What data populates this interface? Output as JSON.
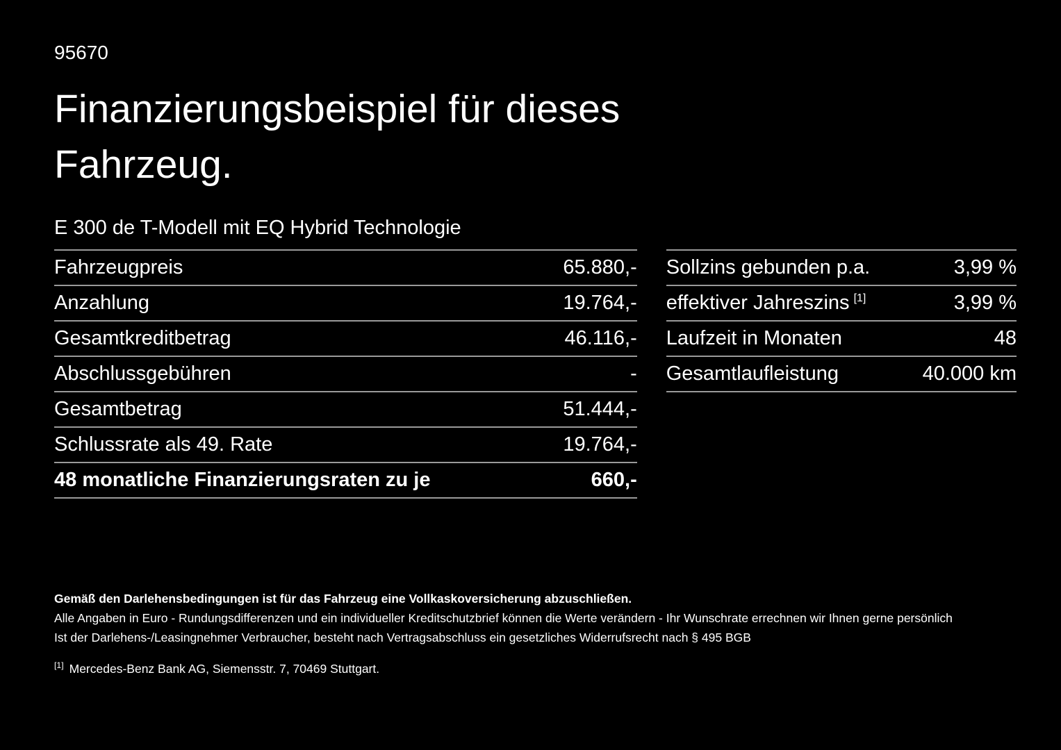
{
  "page": {
    "id_number": "95670",
    "title": "Finanzierungsbeispiel für dieses Fahrzeug.",
    "subtitle": "E 300 de T-Modell mit EQ Hybrid Technologie"
  },
  "tables": {
    "left": {
      "rows": [
        {
          "label": "Fahrzeugpreis",
          "value": "65.880,-"
        },
        {
          "label": "Anzahlung",
          "value": "19.764,-"
        },
        {
          "label": "Gesamtkreditbetrag",
          "value": "46.116,-"
        },
        {
          "label": "Abschlussgebühren",
          "value": "-"
        },
        {
          "label": "Gesamtbetrag",
          "value": "51.444,-"
        },
        {
          "label": "Schlussrate als 49. Rate",
          "value": "19.764,-"
        },
        {
          "label": "48 monatliche Finanzierungsraten zu je",
          "value": "660,-"
        }
      ]
    },
    "right": {
      "rows": [
        {
          "label": "Sollzins gebunden p.a.",
          "value": "3,99 %"
        },
        {
          "label": "effektiver Jahreszins",
          "footnote_marker": "[1]",
          "value": "3,99 %"
        },
        {
          "label": "Laufzeit in Monaten",
          "value": "48"
        },
        {
          "label": "Gesamtlaufleistung",
          "value": "40.000 km"
        }
      ]
    }
  },
  "footer": {
    "line1": "Gemäß den Darlehensbedingungen ist für das Fahrzeug eine Vollkaskoversicherung abzuschließen.",
    "line2": "Alle Angaben in Euro - Rundungsdifferenzen und ein individueller Kreditschutzbrief können die Werte verändern - Ihr Wunschrate errechnen wir Ihnen gerne persönlich",
    "line3": "Ist der Darlehens-/Leasingnehmer Verbraucher, besteht nach Vertragsabschluss ein gesetzliches Widerrufsrecht nach § 495 BGB",
    "footnote_marker": "[1]",
    "footnote_text": "Mercedes-Benz Bank AG, Siemensstr. 7, 70469 Stuttgart."
  },
  "colors": {
    "background": "#000000",
    "text": "#ffffff",
    "divider": "#9a9a9a"
  }
}
